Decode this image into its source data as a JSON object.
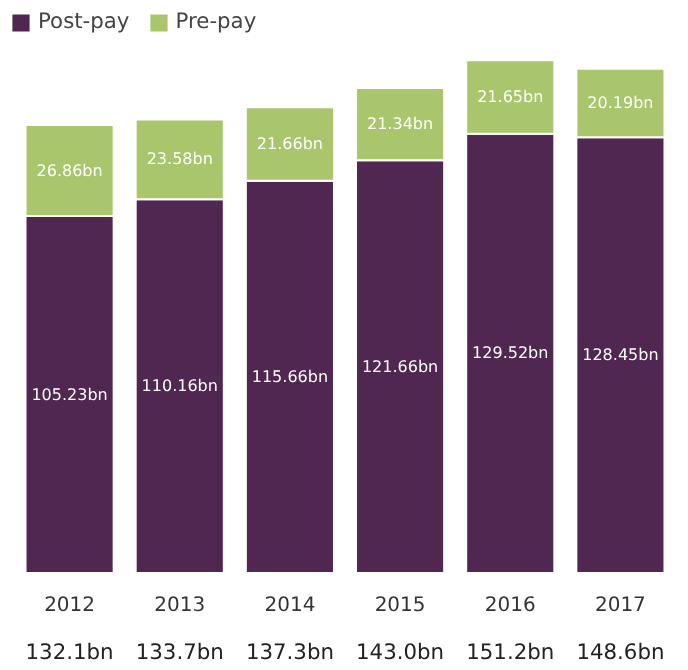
{
  "chart_data": {
    "type": "bar",
    "stacked": true,
    "categories": [
      "2012",
      "2013",
      "2014",
      "2015",
      "2016",
      "2017"
    ],
    "series": [
      {
        "name": "Post-pay",
        "color": "#4f2750",
        "values": [
          105.23,
          110.16,
          115.66,
          121.66,
          129.52,
          128.45
        ],
        "value_labels": [
          "105.23bn",
          "110.16bn",
          "115.66bn",
          "121.66bn",
          "129.52bn",
          "128.45bn"
        ]
      },
      {
        "name": "Pre-pay",
        "color": "#a9c66d",
        "values": [
          26.86,
          23.58,
          21.66,
          21.34,
          21.65,
          20.19
        ],
        "value_labels": [
          "26.86bn",
          "23.58bn",
          "21.66bn",
          "21.34bn",
          "21.65bn",
          "20.19bn"
        ]
      }
    ],
    "totals": [
      "132.1bn",
      "133.7bn",
      "137.3bn",
      "143.0bn",
      "151.2bn",
      "148.6bn"
    ],
    "legend": "top left"
  }
}
